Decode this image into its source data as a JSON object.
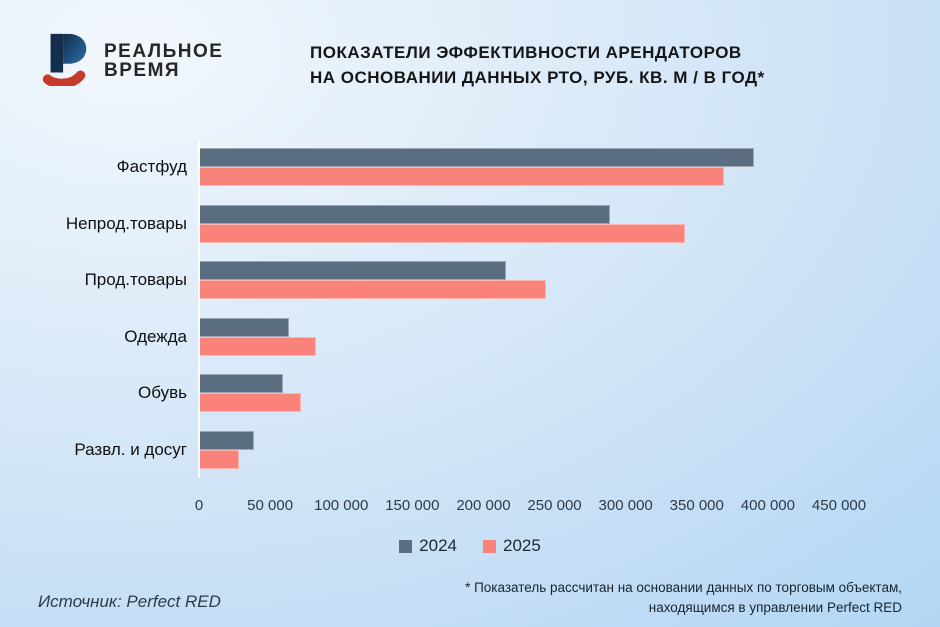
{
  "brand": {
    "name_line1": "РЕАЛЬНОЕ",
    "name_line2": "ВРЕМЯ",
    "logo_blue": "#1d4e79",
    "logo_navy": "#142f4e",
    "logo_red": "#c43a2b"
  },
  "title": {
    "line1": "ПОКАЗАТЕЛИ ЭФФЕКТИВНОСТИ АРЕНДАТОРОВ",
    "line2": "НА ОСНОВАНИИ ДАННЫХ РТО, РУБ. КВ. М / В ГОД*"
  },
  "chart_data": {
    "type": "bar",
    "orientation": "horizontal",
    "title": "Показатели эффективности арендаторов на основании данных РТО, руб. кв. м / в год",
    "categories": [
      "Фастфуд",
      "Непрод.товары",
      "Прод.товары",
      "Одежда",
      "Обувь",
      "Развл. и досуг"
    ],
    "series": [
      {
        "name": "2024",
        "color": "#5b6d80",
        "values": [
          390000,
          289000,
          216000,
          63000,
          59000,
          39000
        ]
      },
      {
        "name": "2025",
        "color": "#f9827a",
        "values": [
          369000,
          342000,
          244000,
          82000,
          72000,
          28000
        ]
      }
    ],
    "xlim": [
      0,
      450000
    ],
    "x_ticks": [
      "0",
      "50 000",
      "100 000",
      "150 000",
      "200 000",
      "250 000",
      "300 000",
      "350 000",
      "400 000",
      "450 000"
    ],
    "grid": false,
    "legend_position": "bottom-center"
  },
  "footer": {
    "source_label": "Источник:  Perfect RED",
    "footnote_line1": "* Показатель рассчитан на основании данных по торговым объектам,",
    "footnote_line2": "находящимся в управлении Perfect RED"
  }
}
